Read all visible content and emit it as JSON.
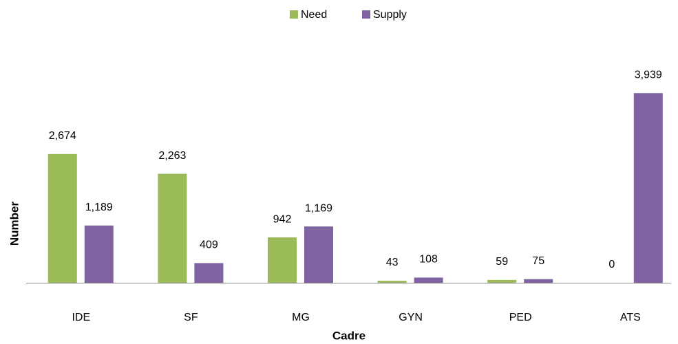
{
  "chart_data": {
    "type": "bar",
    "categories": [
      "IDE",
      "SF",
      "MG",
      "GYN",
      "PED",
      "ATS"
    ],
    "series": [
      {
        "name": "Need",
        "color": "#9bbb59",
        "values": [
          2674,
          2263,
          942,
          43,
          59,
          0
        ],
        "value_labels": [
          "2,674",
          "2,263",
          "942",
          "43",
          "59",
          "0"
        ]
      },
      {
        "name": "Supply",
        "color": "#8064a2",
        "values": [
          1189,
          409,
          1169,
          108,
          75,
          3939
        ],
        "value_labels": [
          "1,189",
          "409",
          "1,169",
          "108",
          "75",
          "3,939"
        ]
      }
    ],
    "x_label": "Cadre",
    "y_label": "Number",
    "ylim": [
      0,
      4000
    ],
    "legend": "top"
  }
}
